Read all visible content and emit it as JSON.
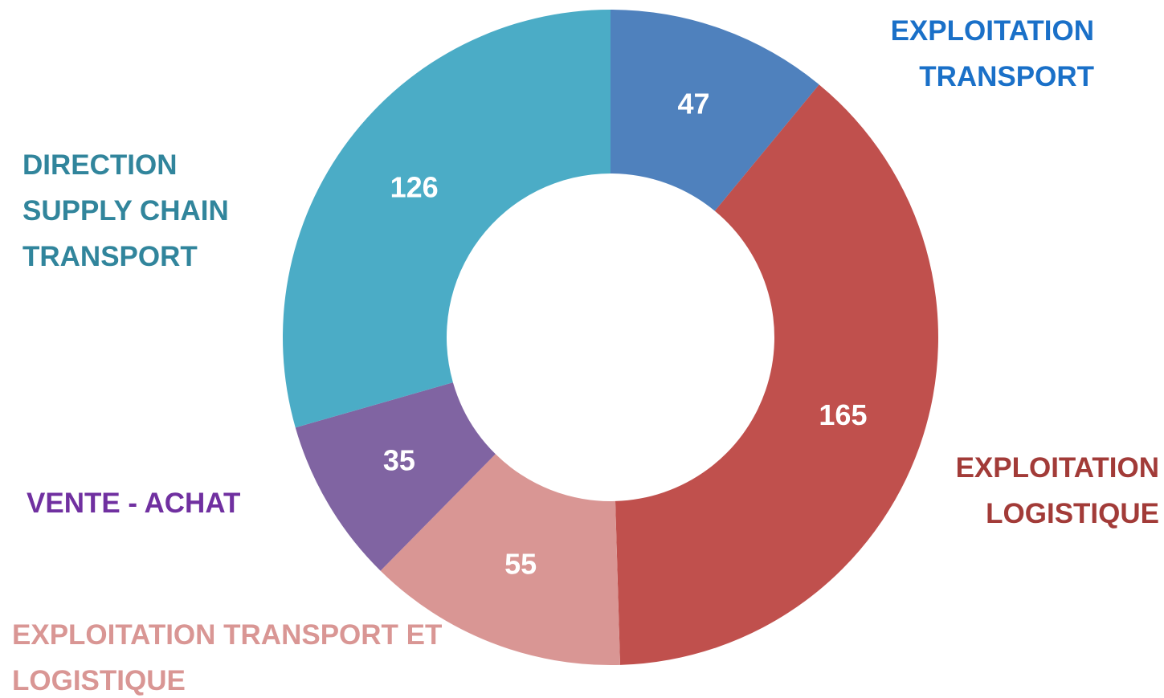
{
  "chart_data": {
    "type": "donut",
    "categories": [
      "EXPLOITATION TRANSPORT",
      "EXPLOITATION LOGISTIQUE",
      "EXPLOITATION TRANSPORT ET LOGISTIQUE",
      "VENTE - ACHAT",
      "DIRECTION SUPPLY CHAIN TRANSPORT"
    ],
    "values": [
      47,
      165,
      55,
      35,
      126
    ],
    "colors": [
      "#4f81bd",
      "#c0504d",
      "#d99694",
      "#8064a2",
      "#4bacc6"
    ],
    "label_colors": [
      "#1a70c8",
      "#a23b38",
      "#d99694",
      "#7030a0",
      "#31859c"
    ]
  }
}
